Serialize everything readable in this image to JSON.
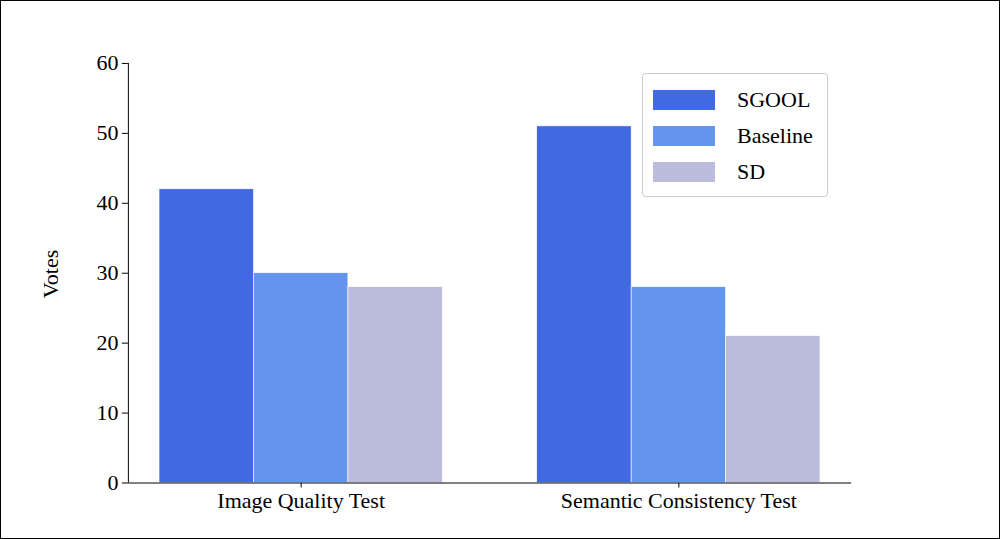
{
  "chart_data": {
    "type": "bar",
    "categories": [
      "Image Quality Test",
      "Semantic Consistency Test"
    ],
    "series": [
      {
        "name": "SGOOL",
        "color": "#4169e1",
        "values": [
          42,
          51
        ]
      },
      {
        "name": "Baseline",
        "color": "#6495ed",
        "values": [
          30,
          28
        ]
      },
      {
        "name": "SD",
        "color": "#bcbddc",
        "values": [
          28,
          21
        ]
      }
    ],
    "y_label": "Votes",
    "ylim": [
      0,
      60
    ],
    "yticks": [
      0,
      10,
      20,
      30,
      40,
      50,
      60
    ],
    "legend": "upper right",
    "grid": false
  }
}
